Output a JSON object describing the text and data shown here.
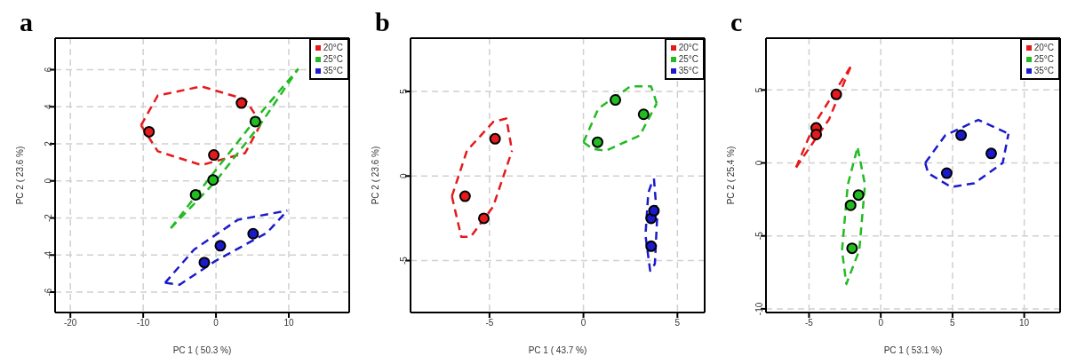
{
  "chart_data": [
    {
      "type": "scatter",
      "title": "a",
      "xlabel": "PC 1 ( 50.3 %)",
      "ylabel": "PC 2 ( 23.6 %)",
      "xlim": [
        -22.1,
        18.3
      ],
      "ylim": [
        -7.1,
        7.7
      ],
      "xticks": [
        -20,
        -10,
        0,
        10
      ],
      "yticks": [
        -6,
        -4,
        -2,
        0,
        2,
        4,
        6
      ],
      "grid": true,
      "legend": "top right",
      "marker": "circle",
      "series": [
        {
          "name": "20°C",
          "color": "#e41a1c",
          "x": [
            -9.2,
            3.5,
            -0.3
          ],
          "values": [
            2.65,
            4.2,
            1.4
          ]
        },
        {
          "name": "25°C",
          "color": "#22bb22",
          "x": [
            5.4,
            -0.4,
            -2.8
          ],
          "values": [
            3.2,
            0.05,
            -0.75
          ]
        },
        {
          "name": "35°C",
          "color": "#1a1acc",
          "x": [
            5.1,
            0.6,
            -1.6
          ],
          "values": [
            -2.85,
            -3.5,
            -4.4
          ]
        },
        {
          "type": "line",
          "marker": "none",
          "line_style": "dashed",
          "color": "#e41a1c",
          "x": [
            -10.3,
            -8,
            -2,
            4,
            6.2
          ],
          "values": [
            3.0,
            4.6,
            5.1,
            4.4,
            3.1
          ]
        },
        {
          "type": "line",
          "marker": "none",
          "line_style": "dashed",
          "color": "#e41a1c",
          "x": [
            -10.3,
            -8,
            -2,
            4,
            6.2
          ],
          "values": [
            3.0,
            1.6,
            0.85,
            1.5,
            3.1
          ]
        },
        {
          "type": "line",
          "marker": "none",
          "line_style": "dashed",
          "color": "#22bb22",
          "x": [
            -6.2,
            0,
            6,
            11.3
          ],
          "values": [
            -2.55,
            0.6,
            3.6,
            6.05
          ]
        },
        {
          "type": "line",
          "marker": "none",
          "line_style": "dashed",
          "color": "#22bb22",
          "x": [
            -6.2,
            0,
            6,
            11.3
          ],
          "values": [
            -2.55,
            0.0,
            3.0,
            6.05
          ]
        },
        {
          "type": "line",
          "marker": "none",
          "line_style": "dashed",
          "color": "#1a1acc",
          "x": [
            -7,
            -3,
            3,
            9.8
          ],
          "values": [
            -5.5,
            -3.7,
            -2.1,
            -1.6
          ]
        },
        {
          "type": "line",
          "marker": "none",
          "line_style": "dashed",
          "color": "#1a1acc",
          "x": [
            -7,
            -5,
            0,
            7,
            9.8
          ],
          "values": [
            -5.5,
            -5.6,
            -4.3,
            -2.8,
            -1.6
          ]
        }
      ]
    },
    {
      "type": "scatter",
      "title": "b",
      "xlabel": "PC 1 ( 43.7 %)",
      "ylabel": "PC 2 ( 23.6 %)",
      "xlim": [
        -9.2,
        6.45
      ],
      "ylim": [
        -8.07,
        8.15
      ],
      "xticks": [
        -5,
        0,
        5
      ],
      "yticks": [
        -5,
        0,
        5
      ],
      "grid": true,
      "legend": "top right",
      "marker": "circle",
      "series": [
        {
          "name": "20°C",
          "color": "#e41a1c",
          "x": [
            -6.3,
            -5.3,
            -4.7
          ],
          "values": [
            -1.2,
            -2.5,
            2.2
          ]
        },
        {
          "name": "25°C",
          "color": "#22bb22",
          "x": [
            0.75,
            1.7,
            3.2
          ],
          "values": [
            2.0,
            4.5,
            3.65
          ]
        },
        {
          "name": "35°C",
          "color": "#1a1acc",
          "x": [
            3.6,
            3.75,
            3.6
          ],
          "values": [
            -2.5,
            -2.05,
            -4.15
          ]
        },
        {
          "type": "line",
          "marker": "none",
          "line_style": "dashed",
          "color": "#e41a1c",
          "x": [
            -7.0,
            -6.2,
            -4.8,
            -4.1,
            -3.8
          ],
          "values": [
            -1.2,
            1.5,
            3.2,
            3.4,
            1.5
          ]
        },
        {
          "type": "line",
          "marker": "none",
          "line_style": "dashed",
          "color": "#e41a1c",
          "x": [
            -7.0,
            -6.5,
            -6.0,
            -4.8,
            -3.8
          ],
          "values": [
            -1.2,
            -3.6,
            -3.6,
            -1.8,
            1.5
          ]
        },
        {
          "type": "line",
          "marker": "none",
          "line_style": "dashed",
          "color": "#22bb22",
          "x": [
            0,
            0.8,
            2.5,
            3.6,
            3.9
          ],
          "values": [
            2.0,
            4.0,
            5.3,
            5.3,
            4.3
          ]
        },
        {
          "type": "line",
          "marker": "none",
          "line_style": "dashed",
          "color": "#22bb22",
          "x": [
            0,
            0.5,
            1.2,
            3.0,
            3.9
          ],
          "values": [
            2.0,
            1.6,
            1.5,
            2.4,
            4.3
          ]
        },
        {
          "type": "line",
          "marker": "none",
          "line_style": "dashed",
          "color": "#1a1acc",
          "x": [
            3.75,
            3.92,
            3.8,
            3.55,
            3.3,
            3.45,
            3.7
          ],
          "values": [
            -0.15,
            -2.5,
            -5.2,
            -5.6,
            -3.5,
            -1.0,
            -0.2
          ]
        }
      ]
    },
    {
      "type": "scatter",
      "title": "c",
      "xlabel": "PC 1 ( 53.1 %)",
      "ylabel": "PC 2 ( 25.4 %)",
      "xlim": [
        -8.0,
        12.5
      ],
      "ylim": [
        -10.25,
        8.55
      ],
      "xticks": [
        -5,
        0,
        5,
        10
      ],
      "yticks": [
        -10,
        -5,
        0,
        5
      ],
      "grid": true,
      "legend": "top right",
      "marker": "circle",
      "series": [
        {
          "name": "20°C",
          "color": "#e41a1c",
          "x": [
            -3.1,
            -4.5,
            -4.5
          ],
          "values": [
            4.7,
            2.4,
            1.95
          ]
        },
        {
          "name": "25°C",
          "color": "#22bb22",
          "x": [
            -1.55,
            -2.1,
            -2.0
          ],
          "values": [
            -2.2,
            -2.9,
            -5.85
          ]
        },
        {
          "name": "35°C",
          "color": "#1a1acc",
          "x": [
            4.6,
            5.6,
            7.7
          ],
          "values": [
            -0.7,
            1.9,
            0.65
          ]
        },
        {
          "type": "line",
          "marker": "none",
          "line_style": "dashed",
          "color": "#e41a1c",
          "x": [
            -5.9,
            -4.6,
            -2.1
          ],
          "values": [
            -0.3,
            2.7,
            6.6
          ]
        },
        {
          "type": "line",
          "marker": "none",
          "line_style": "dashed",
          "color": "#e41a1c",
          "x": [
            -5.9,
            -3.6,
            -2.1
          ],
          "values": [
            -0.3,
            3.0,
            6.6
          ]
        },
        {
          "type": "line",
          "marker": "none",
          "line_style": "dashed",
          "color": "#22bb22",
          "x": [
            -1.6,
            -1.1,
            -1.5,
            -2.4,
            -2.7,
            -2.3,
            -1.65
          ],
          "values": [
            1.0,
            -1.5,
            -6,
            -8.3,
            -6,
            -1.5,
            0.95
          ]
        },
        {
          "type": "line",
          "marker": "none",
          "line_style": "dashed",
          "color": "#1a1acc",
          "x": [
            3.1,
            4.5,
            6.8,
            8.9
          ],
          "values": [
            0,
            1.9,
            2.95,
            2.0
          ]
        },
        {
          "type": "line",
          "marker": "none",
          "line_style": "dashed",
          "color": "#1a1acc",
          "x": [
            3.1,
            3.3,
            4.9,
            6.5,
            8.5,
            8.9
          ],
          "values": [
            0,
            -0.7,
            -1.65,
            -1.4,
            0,
            2.0
          ]
        }
      ]
    }
  ]
}
